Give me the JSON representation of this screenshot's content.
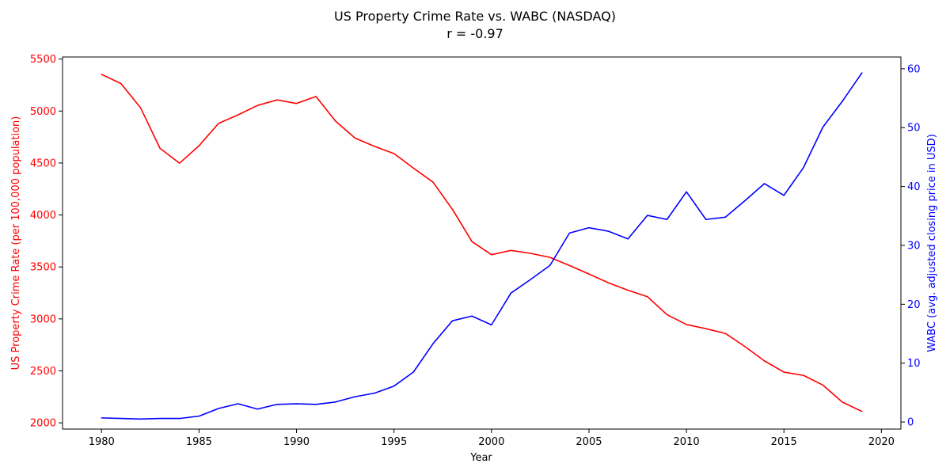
{
  "chart_data": {
    "type": "line",
    "title": "US Property Crime Rate vs. WABC (NASDAQ)",
    "subtitle": "r = -0.97",
    "xlabel": "Year",
    "ylabel_left": "US Property Crime Rate (per 100,000 population)",
    "ylabel_right": "WABC (avg. adjusted closing price in USD)",
    "colors": {
      "left": "#ff0000",
      "right": "#0000ff",
      "axis": "#000000"
    },
    "xlim": [
      1978,
      2021
    ],
    "ylim_left": [
      1940,
      5520
    ],
    "ylim_right": [
      -1.2,
      62
    ],
    "x_ticks": [
      1980,
      1985,
      1990,
      1995,
      2000,
      2005,
      2010,
      2015,
      2020
    ],
    "y_ticks_left": [
      2000,
      2500,
      3000,
      3500,
      4000,
      4500,
      5000,
      5500
    ],
    "y_ticks_right": [
      0,
      10,
      20,
      30,
      40,
      50,
      60
    ],
    "grid": false,
    "x": [
      1980,
      1981,
      1982,
      1983,
      1984,
      1985,
      1986,
      1987,
      1988,
      1989,
      1990,
      1991,
      1992,
      1993,
      1994,
      1995,
      1996,
      1997,
      1998,
      1999,
      2000,
      2001,
      2002,
      2003,
      2004,
      2005,
      2006,
      2007,
      2008,
      2009,
      2010,
      2011,
      2012,
      2013,
      2014,
      2015,
      2016,
      2017,
      2018,
      2019
    ],
    "series": [
      {
        "axis": "left",
        "color": "#ff0000",
        "values": [
          5353,
          5264,
          5032,
          4641,
          4498,
          4666,
          4881,
          4963,
          5054,
          5107,
          5073,
          5140,
          4903,
          4740,
          4660,
          4591,
          4451,
          4316,
          4053,
          3744,
          3618,
          3659,
          3631,
          3592,
          3514,
          3432,
          3347,
          3276,
          3214,
          3041,
          2946,
          2906,
          2860,
          2734,
          2596,
          2488,
          2457,
          2363,
          2199,
          2110
        ]
      },
      {
        "axis": "right",
        "color": "#0000ff",
        "values": [
          0.7,
          0.6,
          0.5,
          0.6,
          0.6,
          1.0,
          2.3,
          3.1,
          2.2,
          3.0,
          3.1,
          3.0,
          3.4,
          4.3,
          4.9,
          6.1,
          8.5,
          13.3,
          17.2,
          18.0,
          16.5,
          21.9,
          24.2,
          26.6,
          32.1,
          33.0,
          32.4,
          31.1,
          35.1,
          34.4,
          39.1,
          34.4,
          34.8,
          37.6,
          40.5,
          38.5,
          43.2,
          50.1,
          54.5,
          59.3
        ]
      }
    ]
  }
}
